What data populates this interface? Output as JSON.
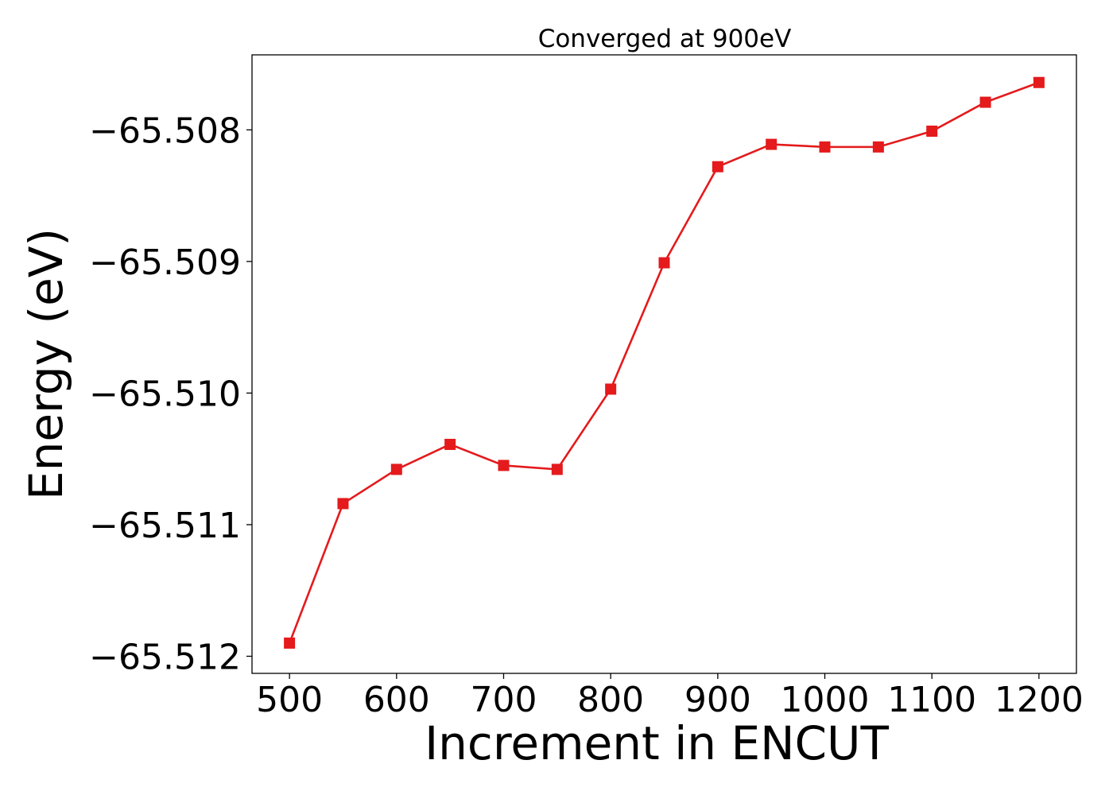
{
  "chart_data": {
    "type": "line",
    "title": "Converged at 900eV",
    "xlabel": "Increment in ENCUT",
    "ylabel": "Energy (eV)",
    "xlim": [
      465,
      1235
    ],
    "ylim": [
      -65.51213,
      -65.50743
    ],
    "x_ticks": [
      500,
      600,
      700,
      800,
      900,
      1000,
      1100,
      1200
    ],
    "x_tick_labels": [
      "500",
      "600",
      "700",
      "800",
      "900",
      "1000",
      "1100",
      "1200"
    ],
    "y_ticks": [
      -65.508,
      -65.509,
      -65.51,
      -65.511,
      -65.512
    ],
    "y_tick_labels": [
      "−65.508",
      "−65.509",
      "−65.510",
      "−65.511",
      "−65.512"
    ],
    "grid": false,
    "marker": "square",
    "series": [
      {
        "color": "#e41a1c",
        "x": [
          500,
          550,
          600,
          650,
          700,
          750,
          800,
          850,
          900,
          950,
          1000,
          1050,
          1100,
          1150,
          1200
        ],
        "y": [
          -65.5119,
          -65.51084,
          -65.51058,
          -65.51039,
          -65.51055,
          -65.51058,
          -65.50997,
          -65.50901,
          -65.50828,
          -65.50811,
          -65.50813,
          -65.50813,
          -65.50801,
          -65.50779,
          -65.50764
        ]
      }
    ]
  }
}
